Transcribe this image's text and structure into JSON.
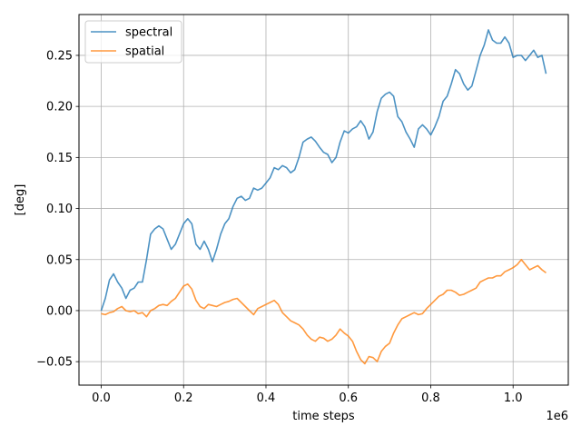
{
  "chart_data": {
    "type": "line",
    "xlabel": "time steps",
    "ylabel": "[deg]",
    "x_offset_label": "1e6",
    "xlim": [
      -0.054,
      1.134
    ],
    "ylim": [
      -0.073,
      0.29
    ],
    "grid": true,
    "legend": "top-left",
    "x_ticks": [
      {
        "value": 0.0,
        "label": "0.0"
      },
      {
        "value": 0.2,
        "label": "0.2"
      },
      {
        "value": 0.4,
        "label": "0.4"
      },
      {
        "value": 0.6,
        "label": "0.6"
      },
      {
        "value": 0.8,
        "label": "0.8"
      },
      {
        "value": 1.0,
        "label": "1.0"
      }
    ],
    "y_ticks": [
      {
        "value": -0.05,
        "label": "−0.05"
      },
      {
        "value": 0.0,
        "label": "0.00"
      },
      {
        "value": 0.05,
        "label": "0.05"
      },
      {
        "value": 0.1,
        "label": "0.10"
      },
      {
        "value": 0.15,
        "label": "0.15"
      },
      {
        "value": 0.2,
        "label": "0.20"
      },
      {
        "value": 0.25,
        "label": "0.25"
      }
    ],
    "series": [
      {
        "name": "spectral",
        "color": "#1f77b4",
        "points": [
          [
            0.0,
            0.0
          ],
          [
            0.01,
            0.012
          ],
          [
            0.02,
            0.03
          ],
          [
            0.03,
            0.036
          ],
          [
            0.04,
            0.028
          ],
          [
            0.05,
            0.022
          ],
          [
            0.06,
            0.012
          ],
          [
            0.07,
            0.02
          ],
          [
            0.08,
            0.022
          ],
          [
            0.09,
            0.028
          ],
          [
            0.1,
            0.028
          ],
          [
            0.11,
            0.05
          ],
          [
            0.12,
            0.075
          ],
          [
            0.13,
            0.08
          ],
          [
            0.14,
            0.083
          ],
          [
            0.15,
            0.08
          ],
          [
            0.16,
            0.07
          ],
          [
            0.17,
            0.06
          ],
          [
            0.18,
            0.065
          ],
          [
            0.19,
            0.075
          ],
          [
            0.2,
            0.085
          ],
          [
            0.21,
            0.09
          ],
          [
            0.22,
            0.085
          ],
          [
            0.23,
            0.065
          ],
          [
            0.24,
            0.06
          ],
          [
            0.25,
            0.068
          ],
          [
            0.26,
            0.06
          ],
          [
            0.27,
            0.048
          ],
          [
            0.28,
            0.06
          ],
          [
            0.29,
            0.075
          ],
          [
            0.3,
            0.085
          ],
          [
            0.31,
            0.09
          ],
          [
            0.32,
            0.102
          ],
          [
            0.33,
            0.11
          ],
          [
            0.34,
            0.112
          ],
          [
            0.35,
            0.108
          ],
          [
            0.36,
            0.11
          ],
          [
            0.37,
            0.12
          ],
          [
            0.38,
            0.118
          ],
          [
            0.39,
            0.12
          ],
          [
            0.4,
            0.125
          ],
          [
            0.41,
            0.13
          ],
          [
            0.42,
            0.14
          ],
          [
            0.43,
            0.138
          ],
          [
            0.44,
            0.142
          ],
          [
            0.45,
            0.14
          ],
          [
            0.46,
            0.135
          ],
          [
            0.47,
            0.138
          ],
          [
            0.48,
            0.15
          ],
          [
            0.49,
            0.165
          ],
          [
            0.5,
            0.168
          ],
          [
            0.51,
            0.17
          ],
          [
            0.52,
            0.166
          ],
          [
            0.53,
            0.16
          ],
          [
            0.54,
            0.155
          ],
          [
            0.55,
            0.153
          ],
          [
            0.56,
            0.145
          ],
          [
            0.57,
            0.15
          ],
          [
            0.58,
            0.165
          ],
          [
            0.59,
            0.176
          ],
          [
            0.6,
            0.174
          ],
          [
            0.61,
            0.178
          ],
          [
            0.62,
            0.18
          ],
          [
            0.63,
            0.186
          ],
          [
            0.64,
            0.18
          ],
          [
            0.65,
            0.168
          ],
          [
            0.66,
            0.175
          ],
          [
            0.67,
            0.195
          ],
          [
            0.68,
            0.208
          ],
          [
            0.69,
            0.212
          ],
          [
            0.7,
            0.214
          ],
          [
            0.71,
            0.21
          ],
          [
            0.72,
            0.19
          ],
          [
            0.73,
            0.185
          ],
          [
            0.74,
            0.175
          ],
          [
            0.75,
            0.168
          ],
          [
            0.76,
            0.16
          ],
          [
            0.77,
            0.178
          ],
          [
            0.78,
            0.182
          ],
          [
            0.79,
            0.178
          ],
          [
            0.8,
            0.172
          ],
          [
            0.81,
            0.18
          ],
          [
            0.82,
            0.19
          ],
          [
            0.83,
            0.205
          ],
          [
            0.84,
            0.21
          ],
          [
            0.85,
            0.222
          ],
          [
            0.86,
            0.236
          ],
          [
            0.87,
            0.232
          ],
          [
            0.88,
            0.222
          ],
          [
            0.89,
            0.216
          ],
          [
            0.9,
            0.22
          ],
          [
            0.91,
            0.235
          ],
          [
            0.92,
            0.25
          ],
          [
            0.93,
            0.26
          ],
          [
            0.94,
            0.275
          ],
          [
            0.95,
            0.265
          ],
          [
            0.96,
            0.262
          ],
          [
            0.97,
            0.262
          ],
          [
            0.98,
            0.268
          ],
          [
            0.99,
            0.262
          ],
          [
            1.0,
            0.248
          ],
          [
            1.01,
            0.25
          ],
          [
            1.02,
            0.25
          ],
          [
            1.03,
            0.245
          ],
          [
            1.04,
            0.25
          ],
          [
            1.05,
            0.255
          ],
          [
            1.06,
            0.248
          ],
          [
            1.07,
            0.25
          ],
          [
            1.08,
            0.232
          ]
        ]
      },
      {
        "name": "spatial",
        "color": "#ff7f0e",
        "points": [
          [
            0.0,
            -0.003
          ],
          [
            0.01,
            -0.004
          ],
          [
            0.02,
            -0.002
          ],
          [
            0.03,
            -0.001
          ],
          [
            0.04,
            0.002
          ],
          [
            0.05,
            0.004
          ],
          [
            0.06,
            0.0
          ],
          [
            0.07,
            -0.001
          ],
          [
            0.08,
            0.0
          ],
          [
            0.09,
            -0.003
          ],
          [
            0.1,
            -0.002
          ],
          [
            0.11,
            -0.006
          ],
          [
            0.12,
            0.0
          ],
          [
            0.13,
            0.002
          ],
          [
            0.14,
            0.005
          ],
          [
            0.15,
            0.006
          ],
          [
            0.16,
            0.005
          ],
          [
            0.17,
            0.009
          ],
          [
            0.18,
            0.012
          ],
          [
            0.19,
            0.018
          ],
          [
            0.2,
            0.024
          ],
          [
            0.21,
            0.026
          ],
          [
            0.22,
            0.021
          ],
          [
            0.23,
            0.01
          ],
          [
            0.24,
            0.004
          ],
          [
            0.25,
            0.002
          ],
          [
            0.26,
            0.006
          ],
          [
            0.27,
            0.005
          ],
          [
            0.28,
            0.004
          ],
          [
            0.29,
            0.006
          ],
          [
            0.3,
            0.008
          ],
          [
            0.31,
            0.009
          ],
          [
            0.32,
            0.011
          ],
          [
            0.33,
            0.012
          ],
          [
            0.34,
            0.008
          ],
          [
            0.35,
            0.004
          ],
          [
            0.36,
            0.0
          ],
          [
            0.37,
            -0.004
          ],
          [
            0.38,
            0.002
          ],
          [
            0.39,
            0.004
          ],
          [
            0.4,
            0.006
          ],
          [
            0.41,
            0.008
          ],
          [
            0.42,
            0.01
          ],
          [
            0.43,
            0.006
          ],
          [
            0.44,
            -0.002
          ],
          [
            0.45,
            -0.006
          ],
          [
            0.46,
            -0.01
          ],
          [
            0.47,
            -0.012
          ],
          [
            0.48,
            -0.014
          ],
          [
            0.49,
            -0.018
          ],
          [
            0.5,
            -0.024
          ],
          [
            0.51,
            -0.028
          ],
          [
            0.52,
            -0.03
          ],
          [
            0.53,
            -0.026
          ],
          [
            0.54,
            -0.027
          ],
          [
            0.55,
            -0.03
          ],
          [
            0.56,
            -0.028
          ],
          [
            0.57,
            -0.024
          ],
          [
            0.58,
            -0.018
          ],
          [
            0.59,
            -0.022
          ],
          [
            0.6,
            -0.025
          ],
          [
            0.61,
            -0.03
          ],
          [
            0.62,
            -0.04
          ],
          [
            0.63,
            -0.048
          ],
          [
            0.64,
            -0.052
          ],
          [
            0.65,
            -0.045
          ],
          [
            0.66,
            -0.046
          ],
          [
            0.67,
            -0.05
          ],
          [
            0.68,
            -0.04
          ],
          [
            0.69,
            -0.035
          ],
          [
            0.7,
            -0.032
          ],
          [
            0.71,
            -0.022
          ],
          [
            0.72,
            -0.014
          ],
          [
            0.73,
            -0.008
          ],
          [
            0.74,
            -0.006
          ],
          [
            0.75,
            -0.004
          ],
          [
            0.76,
            -0.002
          ],
          [
            0.77,
            -0.004
          ],
          [
            0.78,
            -0.003
          ],
          [
            0.79,
            0.002
          ],
          [
            0.8,
            0.006
          ],
          [
            0.81,
            0.01
          ],
          [
            0.82,
            0.014
          ],
          [
            0.83,
            0.016
          ],
          [
            0.84,
            0.02
          ],
          [
            0.85,
            0.02
          ],
          [
            0.86,
            0.018
          ],
          [
            0.87,
            0.015
          ],
          [
            0.88,
            0.016
          ],
          [
            0.89,
            0.018
          ],
          [
            0.9,
            0.02
          ],
          [
            0.91,
            0.022
          ],
          [
            0.92,
            0.028
          ],
          [
            0.93,
            0.03
          ],
          [
            0.94,
            0.032
          ],
          [
            0.95,
            0.032
          ],
          [
            0.96,
            0.034
          ],
          [
            0.97,
            0.034
          ],
          [
            0.98,
            0.038
          ],
          [
            0.99,
            0.04
          ],
          [
            1.0,
            0.042
          ],
          [
            1.01,
            0.045
          ],
          [
            1.02,
            0.05
          ],
          [
            1.03,
            0.045
          ],
          [
            1.04,
            0.04
          ],
          [
            1.05,
            0.042
          ],
          [
            1.06,
            0.044
          ],
          [
            1.07,
            0.04
          ],
          [
            1.08,
            0.037
          ]
        ]
      }
    ]
  }
}
